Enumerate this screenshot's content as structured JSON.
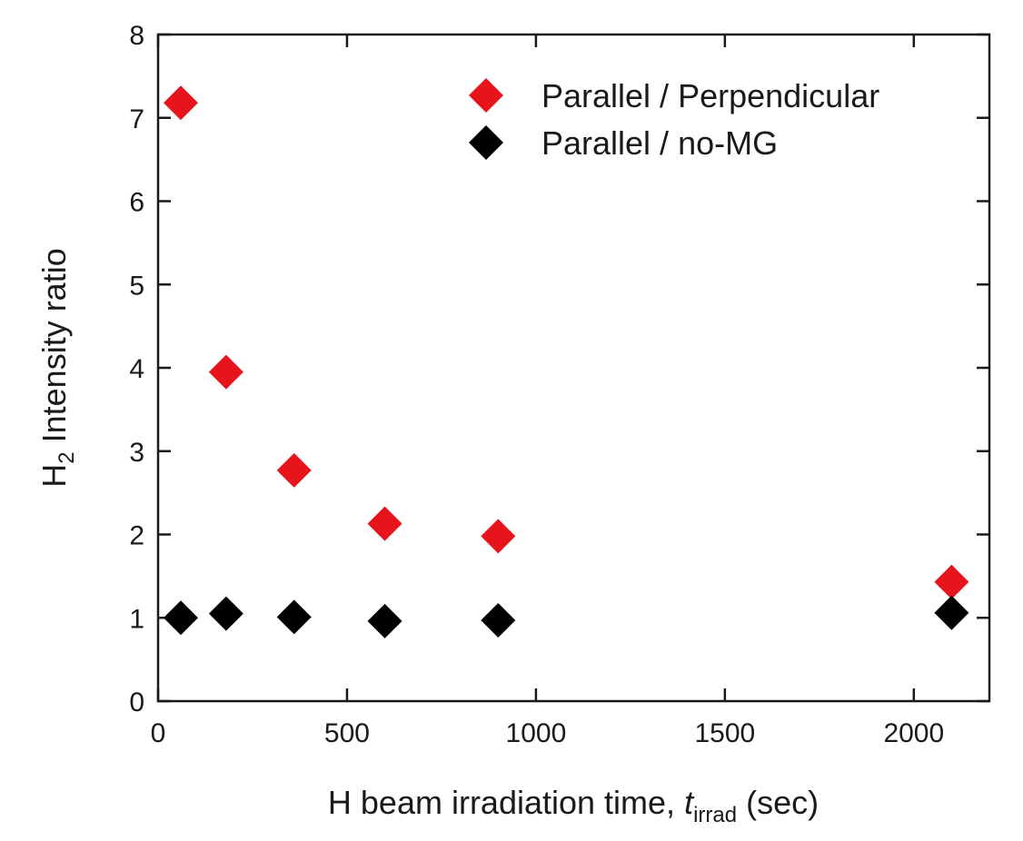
{
  "chart_data": {
    "type": "scatter",
    "xlabel": {
      "prefix": "H beam irradiation time, ",
      "var": "t",
      "sub": "irrad",
      "suffix": " (sec)"
    },
    "ylabel": {
      "main": "H",
      "sub": "2",
      "rest": " Intensity ratio"
    },
    "xlim": [
      0,
      2200
    ],
    "ylim": [
      0,
      8
    ],
    "xticks": [
      0,
      500,
      1000,
      1500,
      2000
    ],
    "yticks": [
      0,
      1,
      2,
      3,
      4,
      5,
      6,
      7,
      8
    ],
    "grid": false,
    "legend_position": "top-right",
    "series": [
      {
        "name": "Parallel / Perpendicular",
        "color": "#e8141b",
        "marker": "diamond",
        "points": [
          {
            "x": 60,
            "y": 7.18
          },
          {
            "x": 180,
            "y": 3.95
          },
          {
            "x": 360,
            "y": 2.77
          },
          {
            "x": 600,
            "y": 2.13
          },
          {
            "x": 900,
            "y": 1.98
          },
          {
            "x": 2100,
            "y": 1.43
          }
        ]
      },
      {
        "name": "Parallel / no-MG",
        "color": "#000000",
        "marker": "diamond",
        "points": [
          {
            "x": 60,
            "y": 1.0
          },
          {
            "x": 180,
            "y": 1.05
          },
          {
            "x": 360,
            "y": 1.01
          },
          {
            "x": 600,
            "y": 0.96
          },
          {
            "x": 900,
            "y": 0.97
          },
          {
            "x": 2100,
            "y": 1.06
          }
        ]
      }
    ]
  }
}
